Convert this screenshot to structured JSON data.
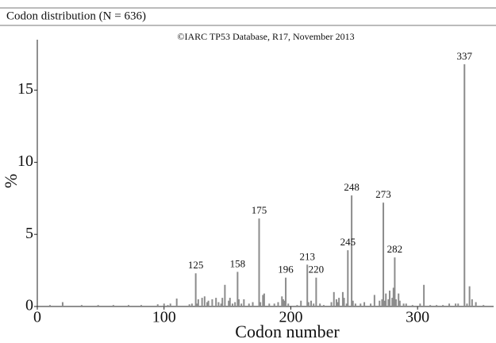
{
  "header": {
    "title": "Codon distribution (N = 636)"
  },
  "chart_data": {
    "type": "bar",
    "subtitle": "©IARC TP53 Database, R17, November 2013",
    "x_label": "Codon number",
    "y_label": "%",
    "color": "#8c8c8c",
    "x": [
      10,
      20,
      35,
      48,
      60,
      72,
      82,
      95,
      100,
      103,
      105,
      110,
      120,
      122,
      125,
      126,
      127,
      130,
      132,
      134,
      135,
      138,
      141,
      143,
      145,
      146,
      148,
      151,
      152,
      154,
      156,
      158,
      159,
      161,
      163,
      167,
      170,
      175,
      176,
      178,
      179,
      183,
      187,
      190,
      193,
      194,
      195,
      196,
      198,
      205,
      208,
      213,
      214,
      216,
      218,
      220,
      223,
      226,
      232,
      234,
      236,
      237,
      238,
      241,
      242,
      244,
      245,
      248,
      249,
      251,
      255,
      258,
      263,
      266,
      270,
      272,
      273,
      274,
      275,
      277,
      278,
      280,
      281,
      282,
      283,
      285,
      286,
      289,
      291,
      296,
      302,
      305,
      310,
      315,
      320,
      325,
      330,
      332,
      337,
      339,
      341,
      343,
      346,
      352
    ],
    "values": [
      0.1,
      0.3,
      0.1,
      0.1,
      0.1,
      0.1,
      0.1,
      0.15,
      0.2,
      0.1,
      0.2,
      0.55,
      0.15,
      0.2,
      2.3,
      0.2,
      0.5,
      0.6,
      0.7,
      0.3,
      0.4,
      0.5,
      0.6,
      0.3,
      0.2,
      0.6,
      1.5,
      0.4,
      0.6,
      0.2,
      0.3,
      2.4,
      0.5,
      0.2,
      0.5,
      0.2,
      0.3,
      6.1,
      0.3,
      0.8,
      0.9,
      0.2,
      0.2,
      0.3,
      0.7,
      0.5,
      0.4,
      2.0,
      0.2,
      0.1,
      0.4,
      2.9,
      0.3,
      0.4,
      0.2,
      2.0,
      0.2,
      0.1,
      0.3,
      1.0,
      0.5,
      0.3,
      0.6,
      1.0,
      0.6,
      0.2,
      3.9,
      7.7,
      0.4,
      0.2,
      0.2,
      0.3,
      0.2,
      0.8,
      0.4,
      0.5,
      7.2,
      0.4,
      0.9,
      0.5,
      1.1,
      0.6,
      1.3,
      3.4,
      0.5,
      0.9,
      0.4,
      0.2,
      0.2,
      0.1,
      0.2,
      1.5,
      0.1,
      0.1,
      0.1,
      0.2,
      0.2,
      0.2,
      16.8,
      0.2,
      1.4,
      0.5,
      0.3,
      0.1
    ],
    "annotations": [
      125,
      158,
      175,
      196,
      213,
      220,
      245,
      248,
      273,
      282,
      337
    ],
    "xlim": [
      0,
      360
    ],
    "xticks": [
      0,
      100,
      200,
      300
    ],
    "ylim": [
      0,
      18.5
    ],
    "yticks": [
      0,
      5,
      10,
      15
    ]
  }
}
